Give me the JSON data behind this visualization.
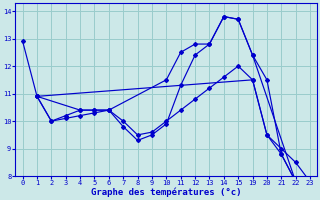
{
  "background_color": "#cce8e8",
  "grid_color": "#99cccc",
  "line_color": "#0000cc",
  "series": [
    {
      "x": [
        0,
        1,
        19,
        20,
        21,
        22,
        23
      ],
      "y": [
        12.9,
        10.9,
        11.5,
        9.5,
        8.8,
        7.8,
        7.8
      ]
    },
    {
      "x": [
        1,
        2,
        3,
        4,
        5,
        6,
        7,
        8,
        9,
        10,
        11,
        12,
        13,
        14,
        15,
        19,
        20,
        21,
        22,
        23
      ],
      "y": [
        10.9,
        10.0,
        10.2,
        10.4,
        10.4,
        10.4,
        9.8,
        9.3,
        9.5,
        9.9,
        11.3,
        12.4,
        12.8,
        13.8,
        13.7,
        12.4,
        11.5,
        8.8,
        7.8,
        7.8
      ]
    },
    {
      "x": [
        1,
        4,
        5,
        6,
        10,
        11,
        12,
        13,
        14,
        15,
        19,
        22,
        23
      ],
      "y": [
        10.9,
        10.4,
        10.4,
        10.4,
        11.5,
        12.5,
        12.8,
        12.8,
        13.8,
        13.7,
        12.4,
        7.8,
        7.8
      ]
    },
    {
      "x": [
        1,
        2,
        3,
        4,
        5,
        6,
        7,
        8,
        9,
        10,
        11,
        12,
        13,
        14,
        15,
        19,
        20,
        21,
        22,
        23
      ],
      "y": [
        10.9,
        10.0,
        10.1,
        10.2,
        10.3,
        10.4,
        10.0,
        9.5,
        9.6,
        10.0,
        10.4,
        10.8,
        11.2,
        11.6,
        12.0,
        11.5,
        9.5,
        9.0,
        8.5,
        7.8
      ]
    }
  ],
  "all_x": [
    0,
    1,
    2,
    3,
    4,
    5,
    6,
    7,
    8,
    9,
    10,
    11,
    12,
    13,
    14,
    15,
    19,
    20,
    21,
    22,
    23
  ],
  "xlabels": [
    "0",
    "1",
    "2",
    "3",
    "4",
    "5",
    "6",
    "7",
    "8",
    "9",
    "10",
    "11",
    "12",
    "13",
    "14",
    "15",
    "19",
    "20",
    "21",
    "22",
    "23"
  ],
  "ylim": [
    8,
    14.3
  ],
  "yticks": [
    8,
    9,
    10,
    11,
    12,
    13,
    14
  ],
  "xlabel": "Graphe des températures (°c)"
}
